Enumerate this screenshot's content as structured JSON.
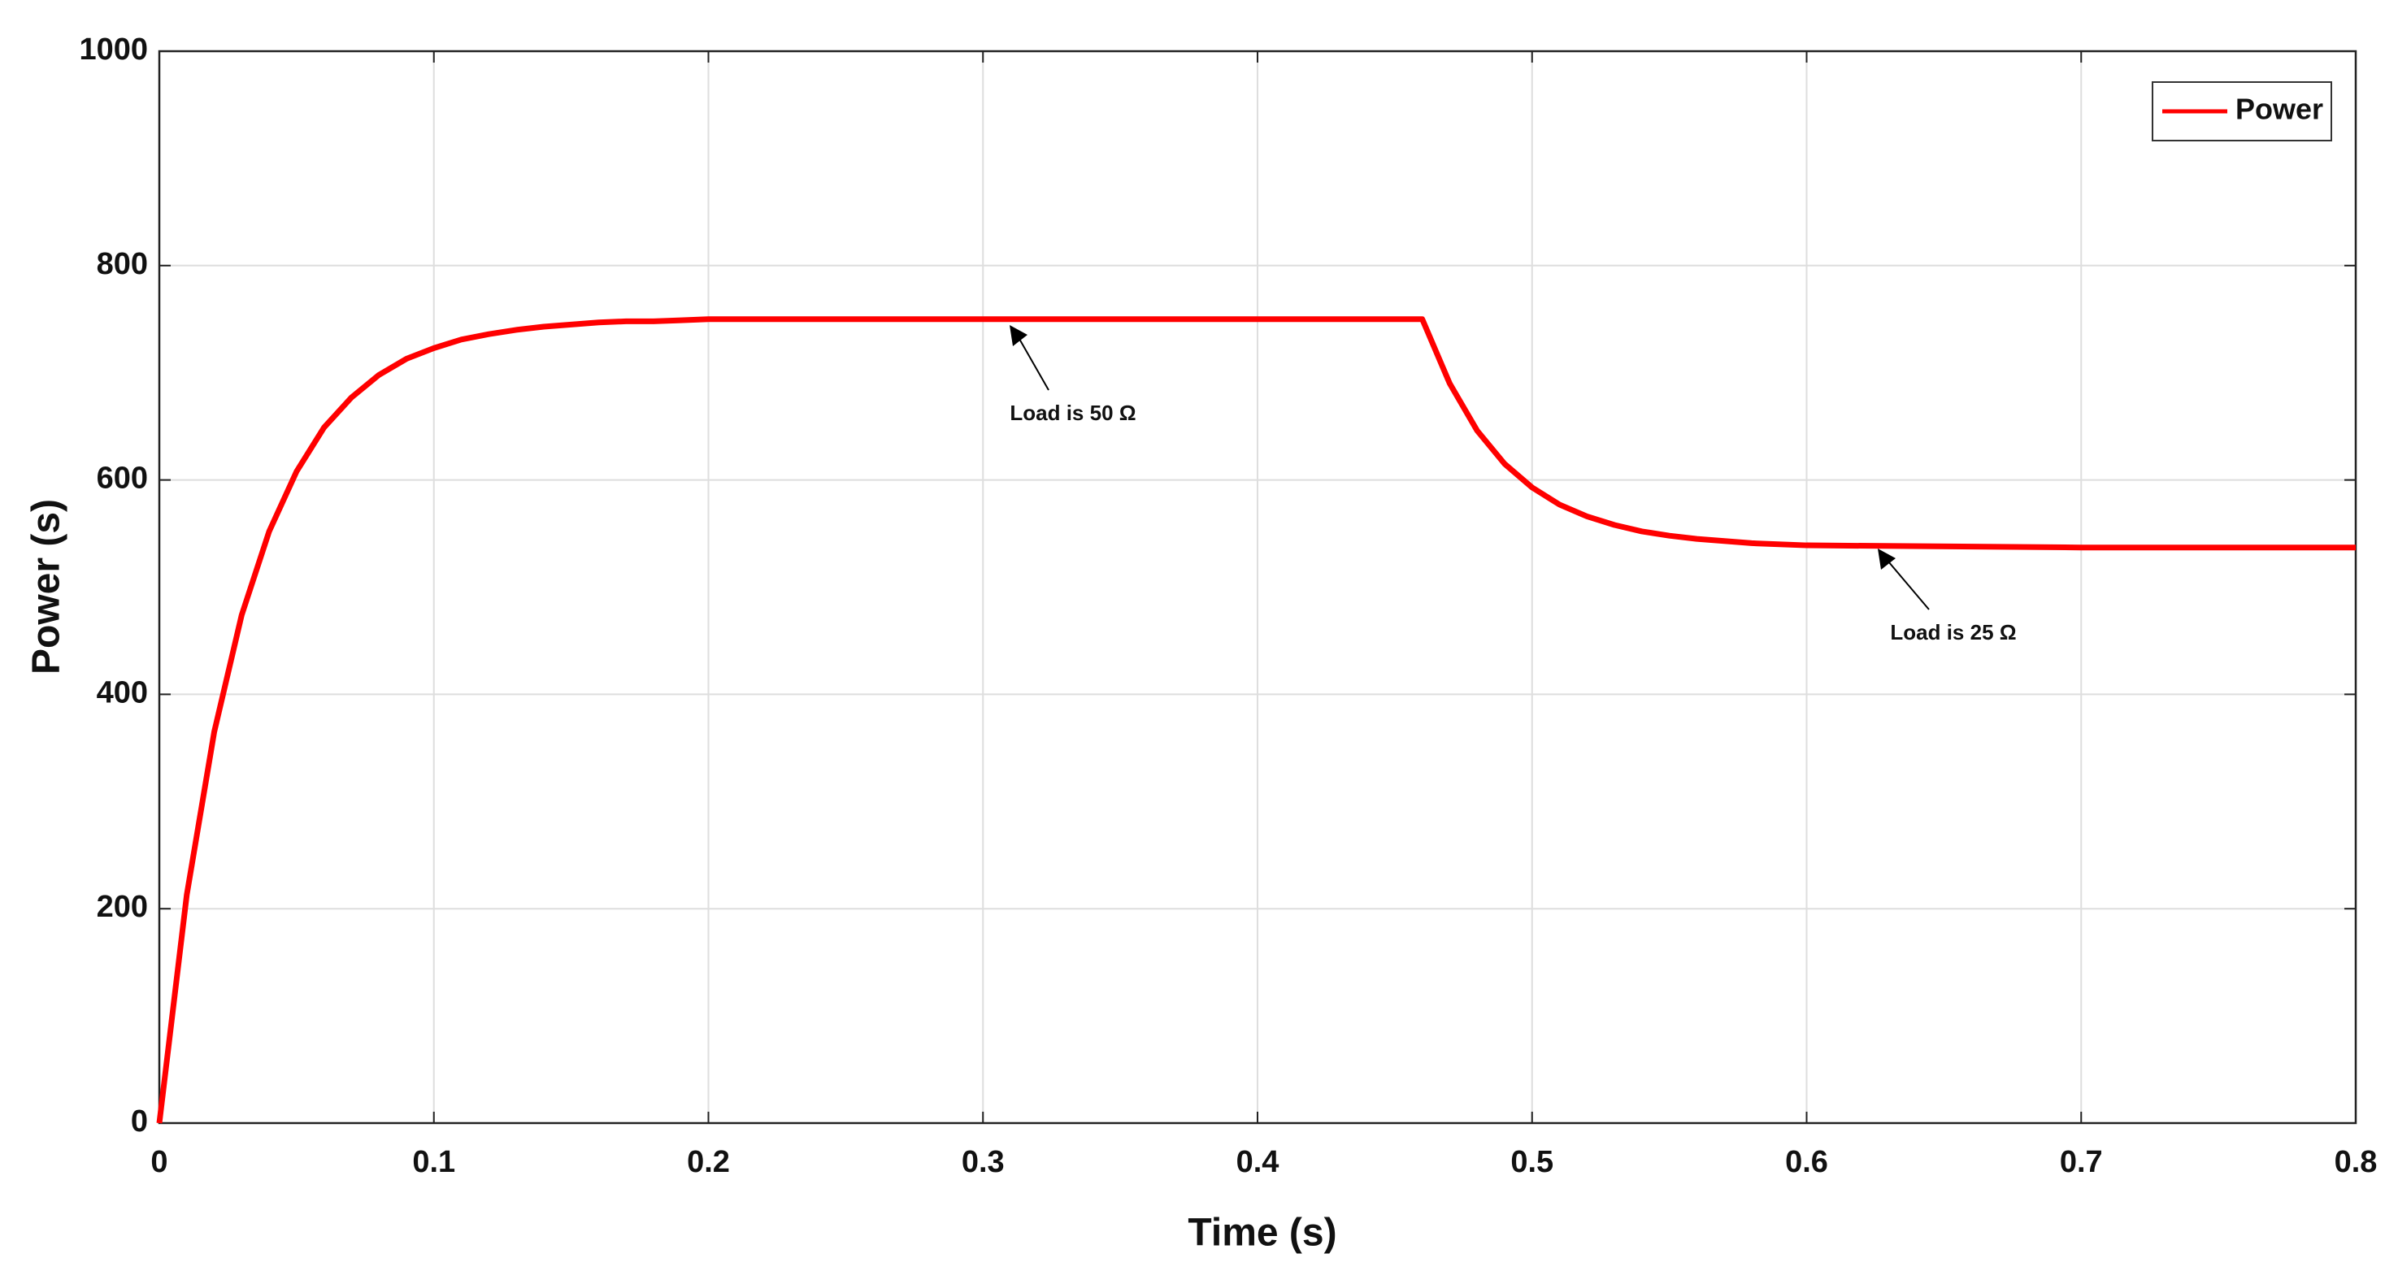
{
  "chart_data": {
    "type": "line",
    "xlabel": "Time (s)",
    "ylabel": "Power (s)",
    "x": [
      0,
      0.01,
      0.02,
      0.03,
      0.04,
      0.05,
      0.06,
      0.07,
      0.08,
      0.09,
      0.1,
      0.11,
      0.12,
      0.13,
      0.14,
      0.15,
      0.16,
      0.17,
      0.18,
      0.19,
      0.2,
      0.3,
      0.4,
      0.46,
      0.47,
      0.48,
      0.49,
      0.5,
      0.51,
      0.52,
      0.53,
      0.54,
      0.55,
      0.56,
      0.58,
      0.6,
      0.7,
      0.8
    ],
    "series": [
      {
        "name": "Power",
        "color": "#ff0000",
        "values": [
          0,
          213,
          365,
          474,
          552,
          608,
          649,
          677,
          698,
          713,
          723,
          731,
          736,
          740,
          743,
          745,
          747,
          748,
          748,
          749,
          750,
          750,
          750,
          750,
          690,
          646,
          615,
          593,
          577,
          566,
          558,
          552,
          548,
          545,
          541,
          539,
          537,
          537
        ]
      }
    ],
    "annotations": [
      "Load is 50 Ω",
      "Load is 25 Ω"
    ],
    "xlim": [
      0,
      0.8
    ],
    "xticks": [
      0,
      0.1,
      0.2,
      0.3,
      0.4,
      0.5,
      0.6,
      0.7,
      0.8
    ],
    "ylim": [
      0,
      1000
    ],
    "yticks": [
      0,
      200,
      400,
      600,
      800,
      1000
    ],
    "grid": true,
    "legend": "upper right"
  }
}
